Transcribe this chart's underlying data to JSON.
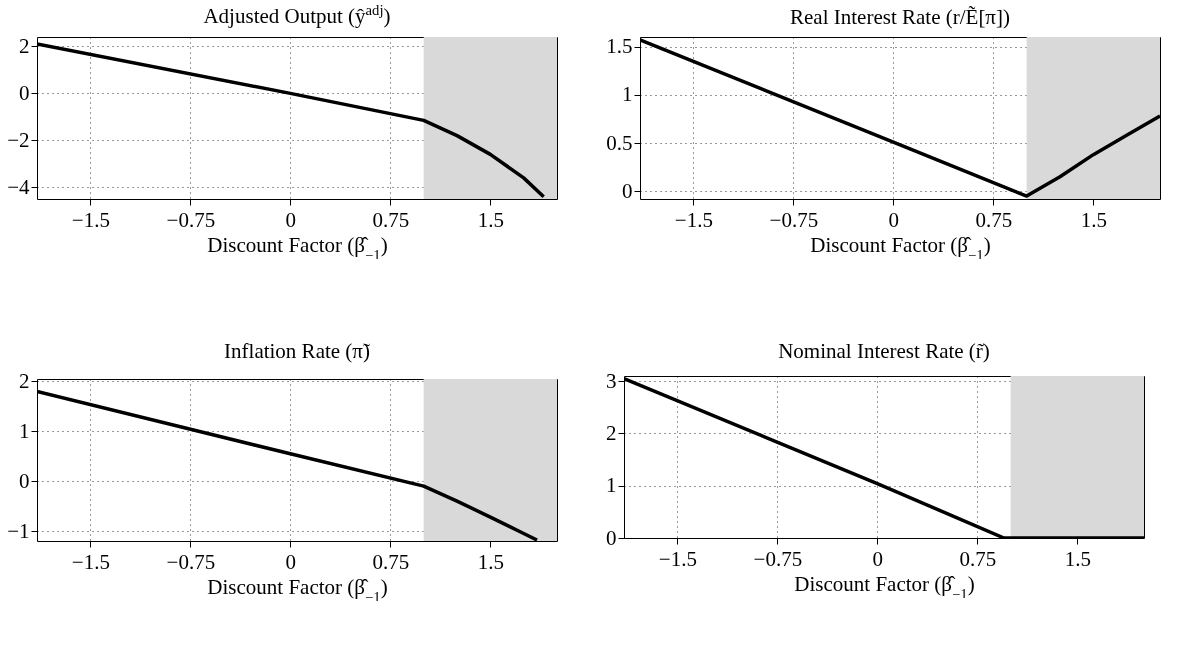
{
  "chart_data": [
    {
      "type": "line",
      "title": "Adjusted Output (ŷ$^{adj}$)",
      "xlabel": "Discount Factor (β̂$_{−1}$)",
      "xlim": [
        -1.9,
        2
      ],
      "ylim": [
        -4.5,
        2.4
      ],
      "xticks": [
        -1.5,
        -0.75,
        0,
        0.75,
        1.5
      ],
      "yticks": [
        -4,
        -2,
        0,
        2
      ],
      "grid": true,
      "bands": [
        {
          "axis": "x",
          "from": 1.0,
          "to": 2,
          "color": "#d9d9d9"
        }
      ],
      "series": [
        {
          "color": "#000000",
          "x": [
            -1.9,
            0,
            1.0,
            1.25,
            1.5,
            1.75,
            1.9
          ],
          "values": [
            2.1,
            0,
            -1.15,
            -1.8,
            -2.6,
            -3.6,
            -4.4
          ]
        }
      ]
    },
    {
      "type": "line",
      "title": "Real Interest Rate (r/Ẽ[π])",
      "xlabel": "Discount Factor (β̂$_{−1}$)",
      "xlim": [
        -1.9,
        2
      ],
      "ylim": [
        -0.08,
        1.6
      ],
      "xticks": [
        -1.5,
        -0.75,
        0,
        0.75,
        1.5
      ],
      "yticks": [
        0,
        0.5,
        1,
        1.5
      ],
      "grid": true,
      "bands": [
        {
          "axis": "x",
          "from": 1.0,
          "to": 2,
          "color": "#d9d9d9"
        }
      ],
      "series": [
        {
          "color": "#000000",
          "x": [
            -1.9,
            0,
            1.0,
            1.25,
            1.5,
            1.75,
            2
          ],
          "values": [
            1.57,
            0.51,
            -0.05,
            0.15,
            0.38,
            0.58,
            0.78
          ]
        }
      ]
    },
    {
      "type": "line",
      "title": "Inflation Rate (π̃)",
      "xlabel": "Discount Factor (β̂$_{−1}$)",
      "xlim": [
        -1.9,
        2
      ],
      "ylim": [
        -1.2,
        2.05
      ],
      "xticks": [
        -1.5,
        -0.75,
        0,
        0.75,
        1.5
      ],
      "yticks": [
        -1,
        0,
        1,
        2
      ],
      "grid": true,
      "bands": [
        {
          "axis": "x",
          "from": 1.0,
          "to": 2,
          "color": "#d9d9d9"
        }
      ],
      "series": [
        {
          "color": "#000000",
          "x": [
            -1.9,
            0,
            1.0,
            1.25,
            1.5,
            1.75,
            1.85
          ],
          "values": [
            1.8,
            0.55,
            -0.1,
            -0.4,
            -0.72,
            -1.05,
            -1.18
          ]
        }
      ]
    },
    {
      "type": "line",
      "title": "Nominal Interest Rate (r̃)",
      "xlabel": "Discount Factor (β̂$_{−1}$)",
      "xlim": [
        -1.9,
        2
      ],
      "ylim": [
        0,
        3.1
      ],
      "xticks": [
        -1.5,
        -0.75,
        0,
        0.75,
        1.5
      ],
      "yticks": [
        0,
        1,
        2,
        3
      ],
      "grid": true,
      "bands": [
        {
          "axis": "x",
          "from": 1.0,
          "to": 2,
          "color": "#d9d9d9"
        }
      ],
      "series": [
        {
          "color": "#000000",
          "x": [
            -1.9,
            0,
            0.95,
            2
          ],
          "values": [
            3.05,
            1.04,
            0,
            0
          ]
        }
      ]
    }
  ]
}
